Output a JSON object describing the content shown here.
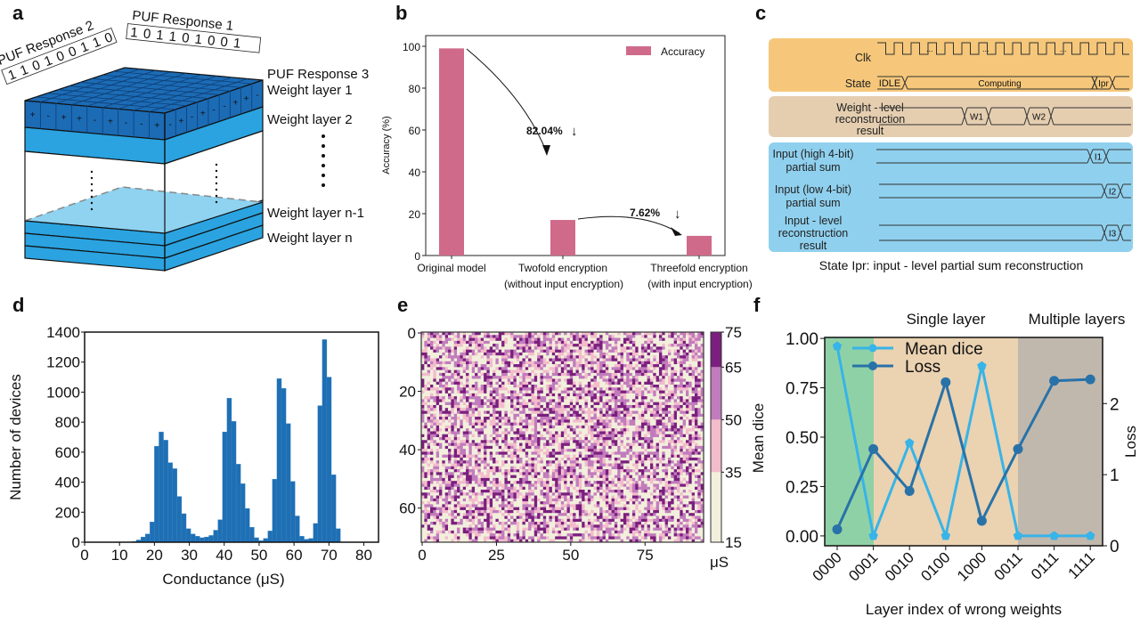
{
  "panel_labels": {
    "a": "a",
    "b": "b",
    "c": "c",
    "d": "d",
    "e": "e",
    "f": "f"
  },
  "panel_a": {
    "puf_response_1_label": "PUF Response 1",
    "puf_response_1_bits": "1 0 1 1 0 1 0 0 1",
    "puf_response_2_label": "PUF Response 2",
    "puf_response_2_bits": "1 1 0 1 0 0 1 1 0",
    "puf_response_3_label": "PUF Response 3",
    "layer_labels": [
      "Weight layer 1",
      "Weight layer 2",
      "Weight layer n-1",
      "Weight layer n"
    ],
    "front_signs": [
      "+",
      "-",
      "+",
      "+",
      "-",
      "+",
      "-",
      "-",
      "+",
      "-",
      "+",
      "-",
      "+",
      "-",
      "-",
      "+",
      "+",
      "-"
    ],
    "colors": {
      "top": "#1c6bb5",
      "layer": "#2aa3e0",
      "plane": "#8fd3f0"
    }
  },
  "panel_c": {
    "signals": {
      "clk": "Clk",
      "state": "State",
      "weight_label": [
        "Weight - level",
        "reconstruction",
        "result"
      ],
      "high_label": [
        "Input (high 4-bit)",
        "partial sum"
      ],
      "low_label": [
        "Input (low 4-bit)",
        "partial sum"
      ],
      "input_level_label": [
        "Input - level",
        "reconstruction",
        "result"
      ]
    },
    "state_segments": [
      "IDLE",
      "Computing",
      "Ipr"
    ],
    "weight_segments": [
      "W1",
      "W2"
    ],
    "high_segment": "I1",
    "low_segment": "I2",
    "input_level_segment": "I3",
    "clk_ellipsis": "...",
    "caption": "State Ipr: input - level partial sum reconstruction",
    "colors": {
      "clock_state": "#f6c77a",
      "weight": "#e5ceb0",
      "input": "#8fd0ee"
    }
  },
  "chart_data": [
    {
      "panel": "b",
      "type": "bar",
      "categories": [
        [
          "Original model",
          ""
        ],
        [
          "Twofold encryption",
          "(without input encryption)"
        ],
        [
          "Threefold encryption",
          "(with input encryption)"
        ]
      ],
      "series": [
        {
          "name": "Accuracy",
          "values": [
            99,
            17,
            9.4
          ],
          "color": "#cf6a8a"
        }
      ],
      "ylabel": "Accuracy (%)",
      "ylim": [
        0,
        105
      ],
      "yticks": [
        0,
        20,
        40,
        60,
        80,
        100
      ],
      "annotations": [
        "82.04%",
        "7.62%"
      ],
      "arrow_glyph": "↓",
      "legend": "top-right",
      "grid": false
    },
    {
      "panel": "d",
      "type": "bar",
      "subtype": "histogram",
      "bin_start": 13.5,
      "bin_width": 1.3,
      "counts": [
        5,
        15,
        35,
        55,
        135,
        640,
        735,
        680,
        530,
        490,
        305,
        190,
        90,
        55,
        40,
        30,
        35,
        45,
        80,
        150,
        735,
        960,
        805,
        520,
        390,
        225,
        100,
        30,
        10,
        25,
        75,
        420,
        1090,
        1025,
        790,
        405,
        175,
        40,
        20,
        25,
        125,
        910,
        1350,
        1100,
        450,
        90
      ],
      "color": "#1f6fb4",
      "xlabel": "Conductance (μS)",
      "ylabel": "Number of devices",
      "xlim": [
        0,
        85
      ],
      "ylim": [
        0,
        1400
      ],
      "xticks": [
        0,
        10,
        20,
        30,
        40,
        50,
        60,
        70,
        80
      ],
      "yticks": [
        0,
        200,
        400,
        600,
        800,
        1000,
        1200,
        1400
      ],
      "grid": false
    },
    {
      "panel": "e",
      "type": "heatmap",
      "columns": 95,
      "rows": 72,
      "xticks": [
        0,
        25,
        50,
        75
      ],
      "yticks": [
        0,
        20,
        40,
        60
      ],
      "colorbar": {
        "boundaries": [
          15,
          35,
          50,
          65,
          75
        ],
        "colors": [
          "#f2efdc",
          "#f3bccb",
          "#c17cbd",
          "#7b1f7e"
        ],
        "ticks": [
          15,
          35,
          50,
          65,
          75
        ],
        "unit": "μS"
      },
      "level_fractions": [
        0.38,
        0.2,
        0.24,
        0.18
      ]
    },
    {
      "panel": "f",
      "type": "line",
      "categories": [
        "0000",
        "0001",
        "0010",
        "0100",
        "1000",
        "0011",
        "0111",
        "1111"
      ],
      "series": [
        {
          "name": "Mean dice",
          "axis": "left",
          "values": [
            0.96,
            0.0,
            0.47,
            0.0,
            0.86,
            0.0,
            0.0,
            0.0
          ],
          "color": "#37b4e8",
          "marker": "pentagon"
        },
        {
          "name": "Loss",
          "axis": "right",
          "values": [
            0.23,
            1.36,
            0.77,
            2.3,
            0.35,
            1.36,
            2.32,
            2.34
          ],
          "color": "#2872a8",
          "marker": "circle"
        }
      ],
      "xlabel": "Layer index of wrong weights",
      "ylabel_left": "Mean dice",
      "ylabel_right": "Loss",
      "ylim_left": [
        -0.05,
        1.005
      ],
      "ylim_right": [
        0,
        2.93
      ],
      "yticks_left": [
        "0.00",
        "0.25",
        "0.50",
        "0.75",
        "1.00"
      ],
      "yticks_right": [
        0,
        1,
        2
      ],
      "regions": [
        {
          "label": "",
          "from": "0000",
          "color": "#8fd1a6"
        },
        {
          "label": "Single layer",
          "from": "0001",
          "color": "#ebd2b1"
        },
        {
          "label": "Multiple layers",
          "from": "0011",
          "color": "#c1b8ad"
        }
      ],
      "legend": "top-left",
      "grid": false
    }
  ]
}
